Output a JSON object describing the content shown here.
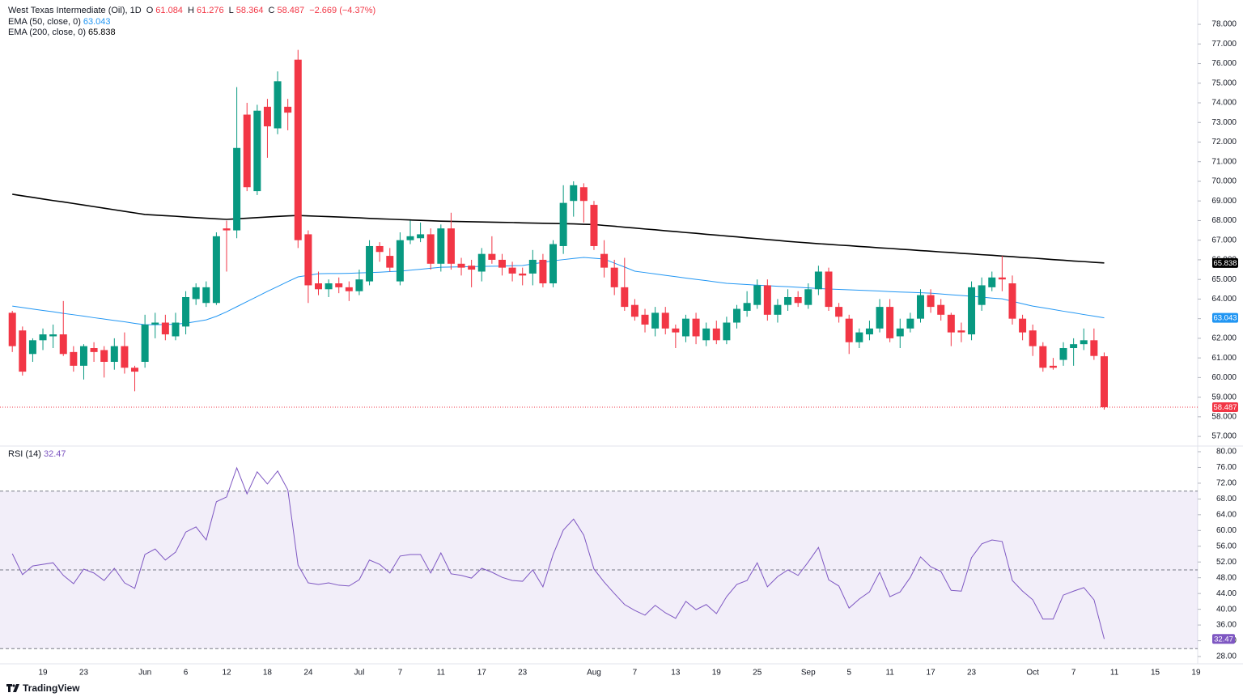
{
  "chart_data": [
    {
      "type": "candlestick",
      "title": "West Texas Intermediate (Oil), 1D",
      "ohlc_labels": [
        "O",
        "H",
        "L",
        "C"
      ],
      "change": "−2.669 (−4.37%)",
      "categories": [
        null,
        null,
        null,
        "19",
        null,
        null,
        null,
        "23",
        null,
        null,
        null,
        null,
        null,
        "Jun",
        null,
        null,
        null,
        "6",
        null,
        null,
        null,
        "12",
        null,
        null,
        null,
        "18",
        null,
        null,
        null,
        "24",
        null,
        null,
        null,
        null,
        "Jul",
        null,
        null,
        null,
        "7",
        null,
        null,
        null,
        "11",
        null,
        null,
        null,
        "17",
        null,
        null,
        null,
        "23",
        null,
        null,
        null,
        null,
        null,
        null,
        "Aug",
        null,
        null,
        null,
        "7",
        null,
        null,
        null,
        "13",
        null,
        null,
        null,
        "19",
        null,
        null,
        null,
        "25",
        null,
        null,
        null,
        null,
        "Sep",
        null,
        null,
        null,
        "5",
        null,
        null,
        null,
        "11",
        null,
        null,
        null,
        "17",
        null,
        null,
        null,
        "23",
        null,
        null,
        null,
        null,
        null,
        "Oct",
        null,
        null,
        null,
        "7",
        null,
        null,
        null,
        "11",
        null,
        null,
        null,
        "15",
        null,
        null,
        null,
        "19"
      ],
      "open": [
        63.3,
        62.4,
        61.2,
        61.9,
        62.1,
        62.2,
        61.3,
        60.6,
        61.5,
        61.4,
        60.8,
        61.6,
        60.5,
        60.8,
        62.7,
        62.8,
        62.1,
        62.6,
        64.0,
        63.8,
        63.8,
        67.6,
        67.5,
        73.4,
        69.5,
        73.8,
        72.7,
        73.8,
        76.2,
        67.3,
        64.8,
        64.5,
        64.8,
        64.6,
        64.4,
        64.9,
        66.7,
        66.2,
        64.9,
        67.0,
        67.1,
        67.3,
        65.8,
        67.6,
        65.8,
        65.7,
        65.4,
        66.3,
        66.0,
        65.6,
        65.3,
        65.3,
        66.0,
        64.8,
        66.7,
        69.0,
        69.7,
        68.8,
        66.3,
        65.6,
        64.6,
        63.7,
        63.2,
        62.5,
        63.3,
        62.5,
        62.1,
        63.0,
        61.9,
        62.5,
        61.9,
        62.8,
        63.4,
        63.7,
        64.7,
        63.2,
        63.7,
        64.1,
        63.7,
        64.5,
        65.4,
        63.6,
        63.0,
        61.8,
        62.2,
        62.5,
        63.6,
        62.1,
        62.5,
        63.0,
        64.2,
        63.7,
        63.2,
        62.4,
        62.2,
        63.7,
        64.6,
        65.1,
        64.8,
        63.0,
        62.4,
        61.6,
        60.6,
        60.9,
        61.5,
        61.7,
        61.9,
        61.084,
        null,
        null,
        null,
        null,
        null,
        null,
        null,
        null,
        null
      ],
      "high": [
        63.4,
        62.6,
        62.0,
        62.5,
        62.7,
        63.9,
        61.6,
        61.7,
        61.8,
        61.6,
        62.0,
        62.3,
        60.6,
        63.2,
        63.3,
        63.2,
        63.3,
        64.4,
        64.8,
        64.9,
        67.4,
        68.0,
        74.8,
        74.0,
        73.9,
        74.2,
        75.6,
        74.2,
        76.7,
        67.5,
        65.4,
        65.0,
        65.1,
        64.9,
        65.5,
        67.0,
        66.9,
        66.6,
        67.4,
        68.0,
        67.9,
        67.6,
        67.8,
        68.4,
        66.1,
        66.0,
        66.6,
        67.2,
        66.3,
        65.9,
        65.6,
        66.5,
        66.3,
        67.0,
        69.8,
        70.0,
        69.9,
        69.0,
        67.0,
        66.0,
        66.1,
        64.0,
        63.5,
        63.6,
        63.6,
        62.7,
        63.2,
        63.3,
        62.8,
        62.9,
        63.1,
        63.7,
        64.4,
        65.0,
        65.0,
        64.0,
        64.5,
        64.4,
        64.8,
        65.7,
        65.6,
        63.8,
        63.2,
        62.5,
        62.9,
        64.0,
        64.0,
        63.0,
        63.3,
        64.5,
        64.5,
        64.0,
        63.3,
        62.8,
        64.9,
        65.1,
        65.4,
        66.2,
        65.2,
        63.2,
        62.7,
        61.8,
        61.0,
        61.8,
        62.0,
        62.5,
        62.5,
        61.276,
        null,
        null,
        null,
        null,
        null,
        null,
        null,
        null,
        null
      ],
      "low": [
        61.3,
        60.1,
        60.8,
        61.4,
        61.5,
        61.1,
        60.3,
        59.9,
        60.8,
        60.0,
        60.4,
        60.2,
        59.3,
        60.5,
        62.0,
        61.9,
        61.9,
        62.2,
        63.7,
        63.6,
        63.7,
        65.4,
        67.1,
        69.5,
        69.3,
        71.2,
        72.4,
        72.6,
        66.6,
        63.8,
        64.2,
        64.1,
        64.3,
        63.9,
        64.2,
        64.7,
        65.9,
        65.4,
        64.7,
        66.8,
        66.9,
        65.5,
        65.4,
        65.5,
        65.2,
        64.6,
        64.9,
        65.8,
        65.2,
        64.9,
        64.7,
        64.7,
        64.6,
        64.6,
        66.3,
        68.2,
        67.9,
        66.5,
        65.1,
        64.2,
        63.4,
        62.9,
        62.3,
        62.1,
        62.2,
        61.5,
        61.8,
        61.7,
        61.6,
        61.7,
        61.7,
        62.5,
        63.1,
        63.5,
        62.9,
        62.8,
        63.4,
        63.6,
        63.5,
        64.2,
        63.4,
        62.8,
        61.2,
        61.5,
        61.9,
        62.3,
        61.8,
        61.5,
        62.3,
        62.8,
        63.3,
        62.9,
        61.6,
        61.8,
        61.9,
        63.4,
        64.4,
        64.4,
        62.7,
        61.9,
        61.1,
        60.3,
        60.4,
        60.6,
        60.6,
        61.4,
        60.9,
        58.364,
        null,
        null,
        null,
        null,
        null,
        null,
        null,
        null,
        null
      ],
      "close": [
        61.6,
        60.3,
        61.9,
        62.2,
        62.2,
        61.2,
        60.6,
        61.6,
        61.3,
        60.8,
        61.6,
        60.5,
        60.3,
        62.7,
        62.8,
        62.2,
        62.8,
        64.1,
        64.6,
        64.6,
        67.2,
        67.5,
        71.7,
        69.7,
        73.6,
        72.8,
        75.1,
        73.5,
        67.0,
        64.7,
        64.5,
        64.8,
        64.6,
        64.4,
        65.0,
        66.7,
        66.4,
        65.6,
        67.0,
        67.2,
        67.3,
        65.8,
        67.6,
        65.8,
        65.6,
        65.5,
        66.3,
        66.0,
        65.6,
        65.3,
        65.2,
        66.0,
        64.8,
        66.8,
        68.9,
        69.8,
        69.0,
        66.7,
        65.6,
        64.6,
        63.6,
        63.1,
        62.7,
        63.3,
        62.5,
        62.3,
        63.0,
        62.1,
        62.5,
        61.9,
        62.8,
        63.5,
        63.8,
        64.7,
        63.2,
        63.7,
        64.1,
        63.8,
        64.5,
        65.4,
        63.6,
        63.1,
        61.8,
        62.3,
        62.5,
        63.6,
        62.0,
        62.5,
        63.0,
        64.2,
        63.6,
        63.2,
        62.3,
        62.3,
        64.6,
        64.7,
        65.1,
        65.0,
        63.0,
        62.3,
        61.6,
        60.5,
        60.5,
        61.5,
        61.7,
        61.9,
        61.1,
        58.487,
        null,
        null,
        null,
        null,
        null,
        null,
        null,
        null,
        null
      ],
      "up_color": "#089981",
      "down_color": "#f23645",
      "series": [
        {
          "name": "EMA (50, close, 0)",
          "color": "#2196f3",
          "values": [
            63.64,
            63.57,
            63.49,
            63.42,
            63.35,
            63.27,
            63.2,
            63.13,
            63.05,
            62.98,
            62.91,
            62.84,
            62.76,
            62.69,
            62.69,
            62.7,
            62.72,
            62.77,
            62.85,
            62.94,
            63.12,
            63.35,
            63.61,
            63.87,
            64.13,
            64.39,
            64.64,
            64.89,
            65.13,
            65.21,
            65.29,
            65.3,
            65.3,
            65.31,
            65.33,
            65.35,
            65.37,
            65.4,
            65.42,
            65.47,
            65.52,
            65.57,
            65.62,
            65.63,
            65.64,
            65.65,
            65.66,
            65.67,
            65.68,
            65.7,
            65.71,
            65.79,
            65.87,
            65.95,
            66.01,
            66.07,
            66.12,
            66.08,
            66.04,
            65.83,
            65.63,
            65.42,
            65.35,
            65.28,
            65.21,
            65.14,
            65.07,
            65.0,
            64.94,
            64.87,
            64.8,
            64.77,
            64.74,
            64.71,
            64.68,
            64.65,
            64.63,
            64.6,
            64.57,
            64.54,
            64.51,
            64.49,
            64.47,
            64.45,
            64.43,
            64.41,
            64.38,
            64.36,
            64.34,
            64.32,
            64.3,
            64.26,
            64.22,
            64.18,
            64.14,
            64.1,
            64.05,
            64.01,
            63.89,
            63.76,
            63.64,
            63.56,
            63.47,
            63.38,
            63.3,
            63.21,
            63.13,
            63.043,
            null,
            null,
            null,
            null,
            null,
            null,
            null,
            null,
            null
          ]
        },
        {
          "name": "EMA (200, close, 0)",
          "color": "#000000",
          "values": [
            69.34,
            69.26,
            69.18,
            69.1,
            69.02,
            68.95,
            68.87,
            68.79,
            68.71,
            68.63,
            68.55,
            68.47,
            68.39,
            68.31,
            68.28,
            68.25,
            68.22,
            68.18,
            68.15,
            68.12,
            68.09,
            68.06,
            68.09,
            68.12,
            68.15,
            68.18,
            68.21,
            68.24,
            68.26,
            68.24,
            68.22,
            68.2,
            68.18,
            68.16,
            68.14,
            68.11,
            68.09,
            68.07,
            68.05,
            68.03,
            68.01,
            67.99,
            67.97,
            67.96,
            67.95,
            67.94,
            67.93,
            67.92,
            67.91,
            67.9,
            67.88,
            67.87,
            67.86,
            67.85,
            67.84,
            67.83,
            67.81,
            67.8,
            67.75,
            67.71,
            67.66,
            67.62,
            67.57,
            67.53,
            67.48,
            67.44,
            67.39,
            67.35,
            67.3,
            67.26,
            67.21,
            67.17,
            67.12,
            67.08,
            67.03,
            66.99,
            66.94,
            66.9,
            66.86,
            66.82,
            66.79,
            66.75,
            66.72,
            66.68,
            66.65,
            66.61,
            66.58,
            66.54,
            66.51,
            66.47,
            66.44,
            66.4,
            66.37,
            66.33,
            66.3,
            66.26,
            66.23,
            66.19,
            66.16,
            66.12,
            66.09,
            66.05,
            66.01,
            65.98,
            65.94,
            65.91,
            65.87,
            65.838,
            null,
            null,
            null,
            null,
            null,
            null,
            null,
            null,
            null
          ]
        }
      ],
      "ylim": [
        56.55,
        79.24
      ],
      "yticks": [
        {
          "value": 57,
          "label": "57.000"
        },
        {
          "value": 58,
          "label": "58.000"
        },
        {
          "value": 59,
          "label": "59.000"
        },
        {
          "value": 60,
          "label": "60.000"
        },
        {
          "value": 61,
          "label": "61.000"
        },
        {
          "value": 62,
          "label": "62.000"
        },
        {
          "value": 63,
          "label": "63.000"
        },
        {
          "value": 64,
          "label": "64.000"
        },
        {
          "value": 65,
          "label": "65.000"
        },
        {
          "value": 66,
          "label": "66.000"
        },
        {
          "value": 67,
          "label": "67.000"
        },
        {
          "value": 68,
          "label": "68.000"
        },
        {
          "value": 69,
          "label": "69.000"
        },
        {
          "value": 70,
          "label": "70.000"
        },
        {
          "value": 71,
          "label": "71.000"
        },
        {
          "value": 72,
          "label": "72.000"
        },
        {
          "value": 73,
          "label": "73.000"
        },
        {
          "value": 74,
          "label": "74.000"
        },
        {
          "value": 75,
          "label": "75.000"
        },
        {
          "value": 76,
          "label": "76.000"
        },
        {
          "value": 77,
          "label": "77.000"
        },
        {
          "value": 78,
          "label": "78.000"
        }
      ]
    },
    {
      "type": "line",
      "series": [
        {
          "name": "RSI (14)",
          "color": "#7e57c2",
          "values": [
            54.1,
            48.8,
            51.0,
            51.4,
            51.8,
            48.6,
            46.5,
            50.2,
            49.2,
            47.3,
            50.4,
            46.7,
            45.3,
            53.9,
            55.3,
            52.5,
            54.5,
            59.6,
            60.9,
            57.6,
            67.3,
            68.5,
            75.9,
            69.3,
            74.9,
            71.8,
            75.1,
            70.3,
            51.2,
            46.7,
            46.3,
            46.7,
            46.1,
            45.9,
            47.5,
            52.5,
            51.4,
            49.2,
            53.5,
            53.9,
            53.9,
            49.2,
            54.3,
            49.0,
            48.6,
            47.9,
            50.4,
            49.4,
            48.1,
            47.3,
            47.1,
            50.0,
            45.7,
            53.9,
            60.1,
            62.9,
            58.8,
            50.2,
            46.9,
            44.0,
            41.2,
            39.7,
            38.5,
            41.0,
            39.1,
            37.7,
            42.0,
            39.9,
            41.2,
            38.9,
            43.2,
            46.3,
            47.3,
            51.8,
            45.7,
            48.3,
            50.0,
            48.6,
            52.0,
            55.7,
            47.5,
            45.9,
            40.3,
            42.6,
            44.4,
            49.4,
            43.2,
            44.4,
            48.1,
            53.3,
            50.8,
            49.6,
            44.8,
            44.6,
            53.1,
            56.6,
            57.6,
            57.2,
            47.3,
            44.6,
            42.4,
            37.5,
            37.5,
            43.6,
            44.6,
            45.5,
            42.4,
            32.47,
            null,
            null,
            null,
            null,
            null,
            null,
            null,
            null,
            null
          ]
        }
      ],
      "ylim": [
        26.15,
        81.23
      ],
      "yticks": [
        {
          "value": 28,
          "label": "28.00"
        },
        {
          "value": 32,
          "label": "32.00"
        },
        {
          "value": 36,
          "label": "36.00"
        },
        {
          "value": 40,
          "label": "40.00"
        },
        {
          "value": 44,
          "label": "44.00"
        },
        {
          "value": 48,
          "label": "48.00"
        },
        {
          "value": 52,
          "label": "52.00"
        },
        {
          "value": 56,
          "label": "56.00"
        },
        {
          "value": 60,
          "label": "60.00"
        },
        {
          "value": 64,
          "label": "64.00"
        },
        {
          "value": 68,
          "label": "68.00"
        },
        {
          "value": 72,
          "label": "72.00"
        },
        {
          "value": 76,
          "label": "76.00"
        },
        {
          "value": 80,
          "label": "80.00"
        }
      ],
      "bands": [
        30,
        70
      ],
      "midline": 50,
      "band_color": "#7e57c2"
    }
  ],
  "branding": "TradingView"
}
